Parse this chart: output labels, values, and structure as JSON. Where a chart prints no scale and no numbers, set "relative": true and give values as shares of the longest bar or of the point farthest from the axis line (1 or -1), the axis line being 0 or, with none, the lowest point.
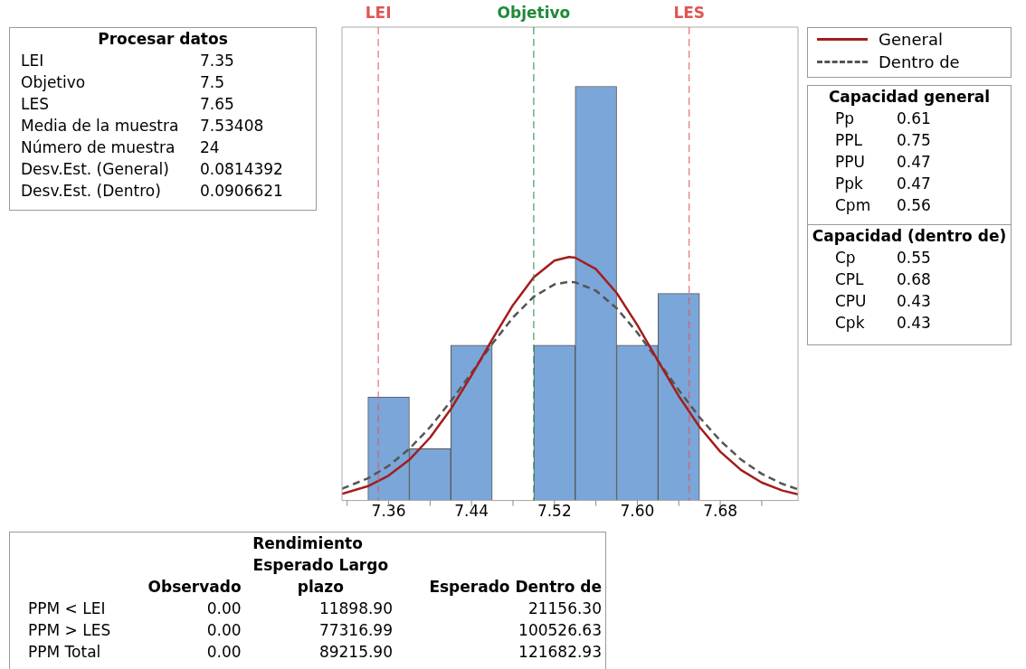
{
  "chart_data": {
    "type": "histogram",
    "relative": true,
    "bins": [
      7.34,
      7.38,
      7.42,
      7.46,
      7.5,
      7.54,
      7.58,
      7.62,
      7.66
    ],
    "values": [
      0.25,
      0.125,
      0.375,
      0,
      0.375,
      1,
      0.375,
      0.5
    ],
    "color": "#7ba6d9",
    "xlim": [
      7.315,
      7.755
    ],
    "xticks": [
      {
        "value": 7.32,
        "label": null
      },
      7.36,
      {
        "value": 7.4,
        "label": null
      },
      7.44,
      {
        "value": 7.48,
        "label": null
      },
      7.52,
      {
        "value": 7.56,
        "label": null
      },
      {
        "value": 7.6,
        "label": "7.60"
      },
      {
        "value": 7.64,
        "label": null
      },
      7.68,
      {
        "value": 7.72,
        "label": null
      }
    ],
    "series": [
      {
        "name": "General",
        "type": "line",
        "color": "#a31d1d",
        "line_style": "solid",
        "x": [
          7.315,
          7.34,
          7.36,
          7.38,
          7.4,
          7.42,
          7.44,
          7.46,
          7.48,
          7.5,
          7.52,
          7.534,
          7.54,
          7.56,
          7.58,
          7.6,
          7.62,
          7.64,
          7.66,
          7.68,
          7.7,
          7.72,
          7.74,
          7.755
        ],
        "values": [
          0.0158,
          0.0345,
          0.06,
          0.0984,
          0.1519,
          0.2207,
          0.3021,
          0.389,
          0.4718,
          0.5388,
          0.5793,
          0.5879,
          0.5863,
          0.5588,
          0.5012,
          0.4235,
          0.3366,
          0.2519,
          0.1776,
          0.1179,
          0.0737,
          0.0433,
          0.024,
          0.0148
        ]
      },
      {
        "name": "Dentro de",
        "type": "line",
        "color": "#555555",
        "line_style": "dashed",
        "x": [
          7.315,
          7.34,
          7.36,
          7.38,
          7.4,
          7.42,
          7.44,
          7.46,
          7.48,
          7.5,
          7.52,
          7.534,
          7.54,
          7.56,
          7.58,
          7.6,
          7.62,
          7.64,
          7.66,
          7.68,
          7.7,
          7.72,
          7.74,
          7.755
        ],
        "values": [
          0.0285,
          0.0535,
          0.0837,
          0.1247,
          0.1771,
          0.2396,
          0.3084,
          0.3784,
          0.4421,
          0.4921,
          0.5218,
          0.528,
          0.5268,
          0.5067,
          0.4643,
          0.4051,
          0.3367,
          0.2666,
          0.201,
          0.1445,
          0.0988,
          0.0643,
          0.04,
          0.027
        ]
      }
    ],
    "ref_lines": [
      {
        "axis": "x",
        "value": 7.35,
        "label": "LEI",
        "color": "#e05555",
        "line_style": "dashed"
      },
      {
        "axis": "x",
        "value": 7.5,
        "label": "Objetivo",
        "color": "#1f8a3a",
        "line_style": "dashed"
      },
      {
        "axis": "x",
        "value": 7.65,
        "label": "LES",
        "color": "#e05555",
        "line_style": "dashed"
      }
    ],
    "legend": "top right",
    "grid": false,
    "annotations": [
      "Procesar datos",
      "LEI\t7.35",
      "Objetivo\t7.5",
      "LES\t7.65",
      "Media de la muestra\t7.53408",
      "Número de muestra\t24",
      "Desv.Est. (General)\t0.0814392",
      "Desv.Est. (Dentro)\t0.0906621",
      "Capacidad general",
      "Pp\t0.61",
      "PPL\t0.75",
      "PPU\t0.47",
      "Ppk\t0.47",
      "Cpm\t0.56",
      "Capacidad (dentro de)",
      "Cp\t0.55",
      "CPL\t0.68",
      "CPU\t0.43",
      "Cpk\t0.43",
      "Rendimiento",
      "\tObservado\tEsperado Largo plazo\tEsperado Dentro de",
      "PPM < LEI\t0.00\t11898.90\t21156.30",
      "PPM > LES\t0.00\t77316.99\t100526.63",
      "PPM Total\t0.00\t89215.90\t121682.93"
    ]
  }
}
